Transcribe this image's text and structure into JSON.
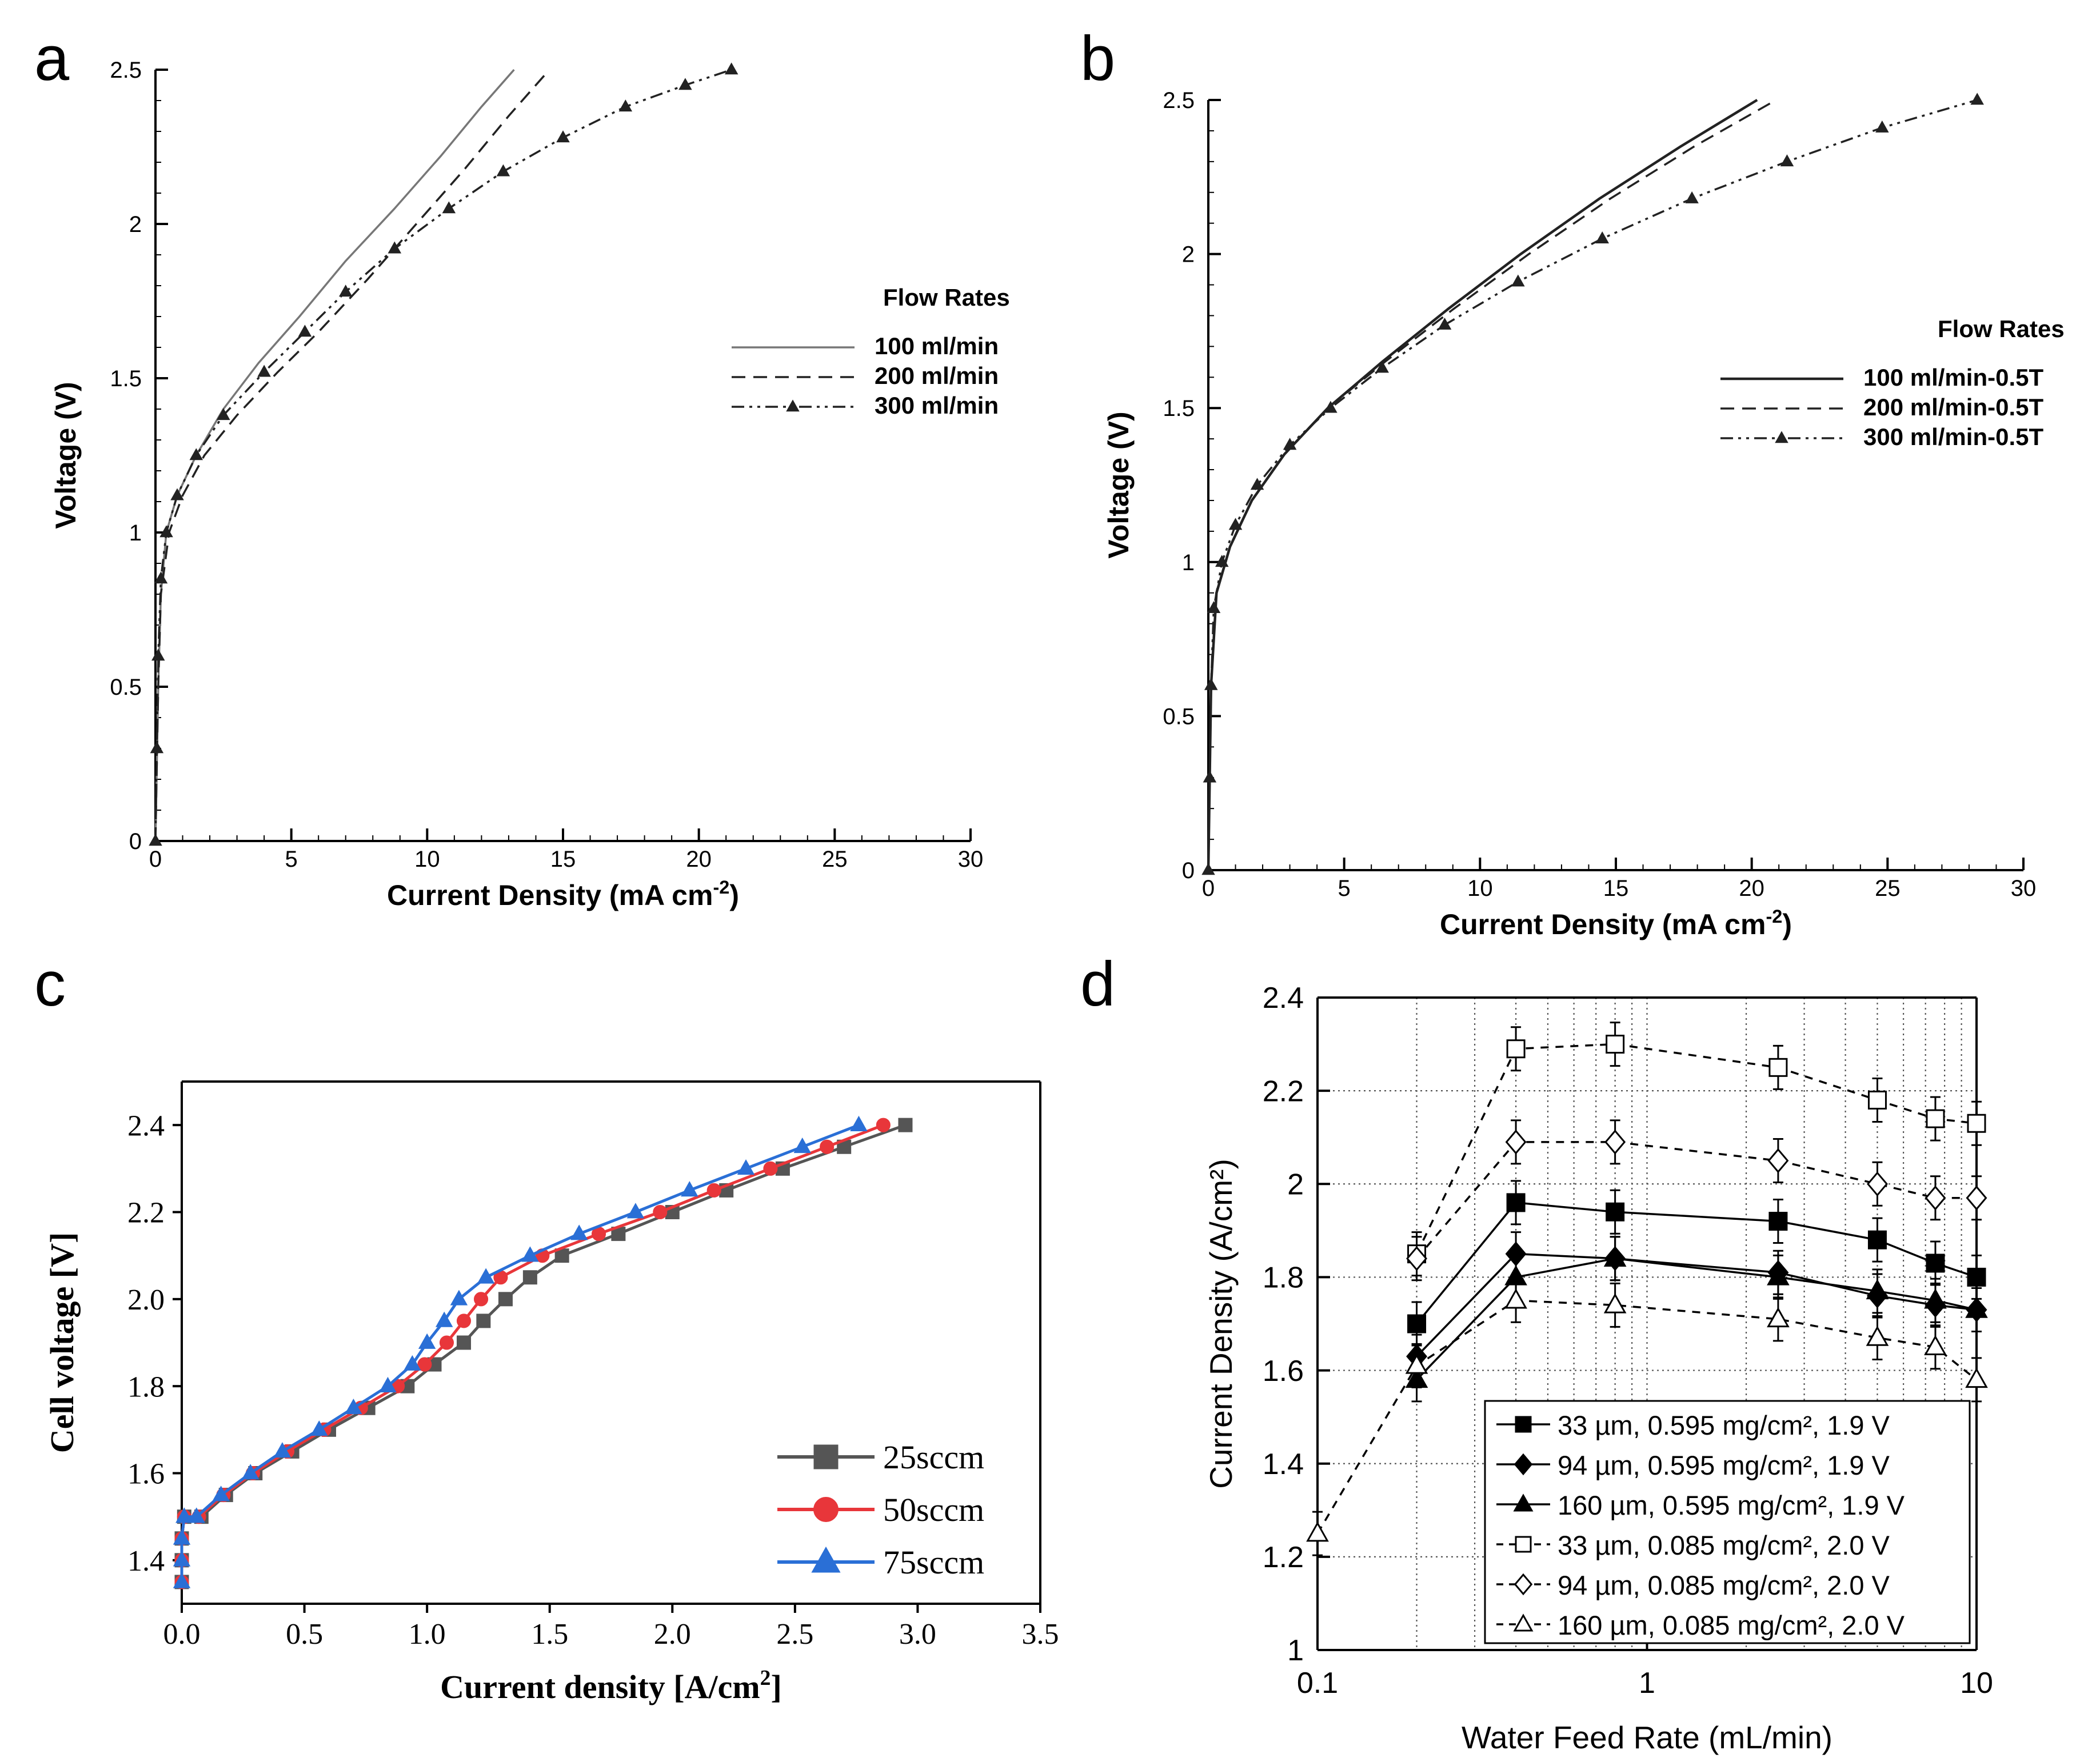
{
  "panels": {
    "a": {
      "letter": "a"
    },
    "b": {
      "letter": "b"
    },
    "c": {
      "letter": "c"
    },
    "d": {
      "letter": "d"
    }
  },
  "chart_data": [
    {
      "id": "a",
      "type": "line",
      "title": "",
      "xlabel": "Current Density (mA cm",
      "xlabel_sup": "-2",
      "xlabel_end": ")",
      "ylabel": "Voltage (V)",
      "xlim": [
        0,
        30
      ],
      "ylim": [
        0,
        2.5
      ],
      "xticks": [
        0,
        5,
        10,
        15,
        20,
        25,
        30
      ],
      "xtick_labels": [
        "0",
        "5",
        "10",
        "15",
        "20",
        "25",
        "30"
      ],
      "yticks": [
        0,
        0.5,
        1,
        1.5,
        2,
        2.5
      ],
      "ytick_labels": [
        "0",
        "0.5",
        "1",
        "1.5",
        "2",
        "2.5"
      ],
      "legend_title": "Flow Rates",
      "series": [
        {
          "name": "100 ml/min",
          "style": "solid-thin",
          "marker": "none",
          "x": [
            0,
            0.1,
            0.2,
            0.4,
            0.8,
            1.5,
            2.5,
            3.8,
            5.3,
            7,
            8.8,
            10.5,
            12,
            13.2
          ],
          "y": [
            0,
            0.5,
            0.8,
            1.0,
            1.12,
            1.25,
            1.4,
            1.55,
            1.7,
            1.88,
            2.05,
            2.22,
            2.38,
            2.5
          ]
        },
        {
          "name": "200 ml/min",
          "style": "dashed",
          "marker": "none",
          "x": [
            0,
            0.1,
            0.2,
            0.5,
            1,
            1.8,
            3,
            4.5,
            6,
            7.8,
            9.6,
            11.4,
            13,
            14.5
          ],
          "y": [
            0,
            0.5,
            0.8,
            1.0,
            1.12,
            1.25,
            1.38,
            1.52,
            1.65,
            1.82,
            2.0,
            2.18,
            2.35,
            2.5
          ]
        },
        {
          "name": "300 ml/min",
          "style": "dashdot",
          "marker": "triangle",
          "x": [
            0,
            0.05,
            0.1,
            0.2,
            0.4,
            0.8,
            1.5,
            2.5,
            4,
            5.5,
            7,
            8.8,
            10.8,
            12.8,
            15,
            17.3,
            19.5,
            21.2
          ],
          "y": [
            0,
            0.3,
            0.6,
            0.85,
            1.0,
            1.12,
            1.25,
            1.38,
            1.52,
            1.65,
            1.78,
            1.92,
            2.05,
            2.17,
            2.28,
            2.38,
            2.45,
            2.5
          ]
        }
      ]
    },
    {
      "id": "b",
      "type": "line",
      "title": "",
      "xlabel": "Current Density (mA cm",
      "xlabel_sup": "-2",
      "xlabel_end": ")",
      "ylabel": "Voltage (V)",
      "xlim": [
        0,
        30
      ],
      "ylim": [
        0,
        2.5
      ],
      "xticks": [
        0,
        5,
        10,
        15,
        20,
        25,
        30
      ],
      "xtick_labels": [
        "0",
        "5",
        "10",
        "15",
        "20",
        "25",
        "30"
      ],
      "yticks": [
        0,
        0.5,
        1,
        1.5,
        2,
        2.5
      ],
      "ytick_labels": [
        "0",
        "0.5",
        "1",
        "1.5",
        "2",
        "2.5"
      ],
      "legend_title": "Flow Rates",
      "series": [
        {
          "name": "100 ml/min-0.5T",
          "style": "solid",
          "marker": "none",
          "x": [
            0,
            0.1,
            0.3,
            0.8,
            1.6,
            2.8,
            4.4,
            6.4,
            8.8,
            11.5,
            14.4,
            17.4,
            20.2
          ],
          "y": [
            0,
            0.6,
            0.9,
            1.05,
            1.2,
            1.35,
            1.5,
            1.65,
            1.82,
            2.0,
            2.18,
            2.35,
            2.5
          ]
        },
        {
          "name": "200 ml/min-0.5T",
          "style": "dashed",
          "marker": "none",
          "x": [
            0,
            0.1,
            0.3,
            0.8,
            1.6,
            2.8,
            4.4,
            6.5,
            9.0,
            11.8,
            14.8,
            17.9,
            20.9
          ],
          "y": [
            0,
            0.6,
            0.9,
            1.05,
            1.2,
            1.35,
            1.5,
            1.65,
            1.82,
            2.0,
            2.18,
            2.35,
            2.5
          ]
        },
        {
          "name": "300 ml/min-0.5T",
          "style": "dashdot",
          "marker": "triangle",
          "x": [
            0,
            0.05,
            0.1,
            0.2,
            0.5,
            1,
            1.8,
            3,
            4.5,
            6.4,
            8.7,
            11.4,
            14.5,
            17.8,
            21.3,
            24.8,
            28.3
          ],
          "y": [
            0,
            0.3,
            0.6,
            0.85,
            1.0,
            1.12,
            1.25,
            1.38,
            1.5,
            1.63,
            1.77,
            1.91,
            2.05,
            2.18,
            2.3,
            2.41,
            2.5
          ]
        }
      ]
    },
    {
      "id": "c",
      "type": "line",
      "title": "",
      "xlabel": "Current density [A/cm",
      "xlabel_sup": "2",
      "xlabel_end": "]",
      "ylabel": "Cell voltage [V]",
      "xlim": [
        0,
        3.5
      ],
      "ylim": [
        1.3,
        2.5
      ],
      "xticks": [
        0,
        0.5,
        1,
        1.5,
        2,
        2.5,
        3,
        3.5
      ],
      "xtick_labels": [
        "0.0",
        "0.5",
        "1.0",
        "1.5",
        "2.0",
        "2.5",
        "3.0",
        "3.5"
      ],
      "yticks": [
        1.4,
        1.6,
        1.8,
        2.0,
        2.2,
        2.4
      ],
      "ytick_labels": [
        "1.4",
        "1.6",
        "1.8",
        "2.0",
        "2.2",
        "2.4"
      ],
      "series": [
        {
          "name": "25sccm",
          "color": "#555555",
          "marker": "square",
          "x": [
            0,
            0,
            0,
            0.01,
            0.08,
            0.18,
            0.3,
            0.45,
            0.6,
            0.76,
            0.92,
            1.03,
            1.15,
            1.23,
            1.32,
            1.42,
            1.55,
            1.78,
            2.0,
            2.22,
            2.45,
            2.7,
            2.95
          ],
          "y": [
            1.35,
            1.4,
            1.45,
            1.5,
            1.5,
            1.55,
            1.6,
            1.65,
            1.7,
            1.75,
            1.8,
            1.85,
            1.9,
            1.95,
            2.0,
            2.05,
            2.1,
            2.15,
            2.2,
            2.25,
            2.3,
            2.35,
            2.4
          ]
        },
        {
          "name": "50sccm",
          "color": "#e8363a",
          "marker": "circle",
          "x": [
            0,
            0,
            0,
            0.01,
            0.07,
            0.17,
            0.29,
            0.43,
            0.58,
            0.73,
            0.88,
            0.99,
            1.08,
            1.15,
            1.22,
            1.3,
            1.47,
            1.7,
            1.95,
            2.17,
            2.4,
            2.63,
            2.86
          ],
          "y": [
            1.35,
            1.4,
            1.45,
            1.5,
            1.5,
            1.55,
            1.6,
            1.65,
            1.7,
            1.75,
            1.8,
            1.85,
            1.9,
            1.95,
            2.0,
            2.05,
            2.1,
            2.15,
            2.2,
            2.25,
            2.3,
            2.35,
            2.4
          ]
        },
        {
          "name": "75sccm",
          "color": "#2a6fd6",
          "marker": "triangle",
          "x": [
            0,
            0,
            0,
            0.01,
            0.06,
            0.16,
            0.28,
            0.41,
            0.56,
            0.7,
            0.84,
            0.94,
            1.0,
            1.07,
            1.13,
            1.24,
            1.42,
            1.62,
            1.85,
            2.07,
            2.3,
            2.53,
            2.76
          ],
          "y": [
            1.35,
            1.4,
            1.45,
            1.5,
            1.5,
            1.55,
            1.6,
            1.65,
            1.7,
            1.75,
            1.8,
            1.85,
            1.9,
            1.95,
            2.0,
            2.05,
            2.1,
            2.15,
            2.2,
            2.25,
            2.3,
            2.35,
            2.4
          ]
        }
      ]
    },
    {
      "id": "d",
      "type": "line",
      "xscale": "log",
      "title": "",
      "xlabel": "Water Feed Rate (mL/min)",
      "ylabel": "Current Density (A/cm²)",
      "xlim": [
        0.1,
        10
      ],
      "ylim": [
        1,
        2.4
      ],
      "xticks": [
        0.1,
        1,
        10
      ],
      "xtick_labels": [
        "0.1",
        "1",
        "10"
      ],
      "yticks": [
        1,
        1.2,
        1.4,
        1.6,
        1.8,
        2,
        2.2,
        2.4
      ],
      "ytick_labels": [
        "1",
        "1.2",
        "1.4",
        "1.6",
        "1.8",
        "2",
        "2.2",
        "2.4"
      ],
      "grid": true,
      "series": [
        {
          "name": "33 µm, 0.595 mg/cm², 1.9 V",
          "marker": "square",
          "filled": true,
          "dashed": false,
          "x": [
            0.2,
            0.4,
            0.8,
            2.5,
            5,
            7.5,
            10
          ],
          "y": [
            1.7,
            1.96,
            1.94,
            1.92,
            1.88,
            1.83,
            1.8
          ]
        },
        {
          "name": "94 µm, 0.595 mg/cm², 1.9 V",
          "marker": "diamond",
          "filled": true,
          "dashed": false,
          "x": [
            0.2,
            0.4,
            0.8,
            2.5,
            5,
            7.5,
            10
          ],
          "y": [
            1.63,
            1.85,
            1.84,
            1.81,
            1.76,
            1.74,
            1.73
          ]
        },
        {
          "name": "160 µm, 0.595 mg/cm², 1.9 V",
          "marker": "triangle",
          "filled": true,
          "dashed": false,
          "x": [
            0.2,
            0.4,
            0.8,
            2.5,
            5,
            7.5,
            10
          ],
          "y": [
            1.58,
            1.8,
            1.84,
            1.8,
            1.77,
            1.75,
            1.73
          ]
        },
        {
          "name": "33 µm, 0.085 mg/cm², 2.0 V",
          "marker": "square",
          "filled": false,
          "dashed": true,
          "x": [
            0.2,
            0.4,
            0.8,
            2.5,
            5,
            7.5,
            10
          ],
          "y": [
            1.85,
            2.29,
            2.3,
            2.25,
            2.18,
            2.14,
            2.13
          ]
        },
        {
          "name": "94 µm, 0.085 mg/cm², 2.0 V",
          "marker": "diamond",
          "filled": false,
          "dashed": true,
          "x": [
            0.2,
            0.4,
            0.8,
            2.5,
            5,
            7.5,
            10
          ],
          "y": [
            1.84,
            2.09,
            2.09,
            2.05,
            2.0,
            1.97,
            1.97
          ]
        },
        {
          "name": "160 µm, 0.085 mg/cm², 2.0 V",
          "marker": "triangle",
          "filled": false,
          "dashed": true,
          "x": [
            0.1,
            0.2,
            0.4,
            0.8,
            2.5,
            5,
            7.5,
            10
          ],
          "y": [
            1.25,
            1.61,
            1.75,
            1.74,
            1.71,
            1.67,
            1.65,
            1.58
          ]
        }
      ]
    }
  ]
}
